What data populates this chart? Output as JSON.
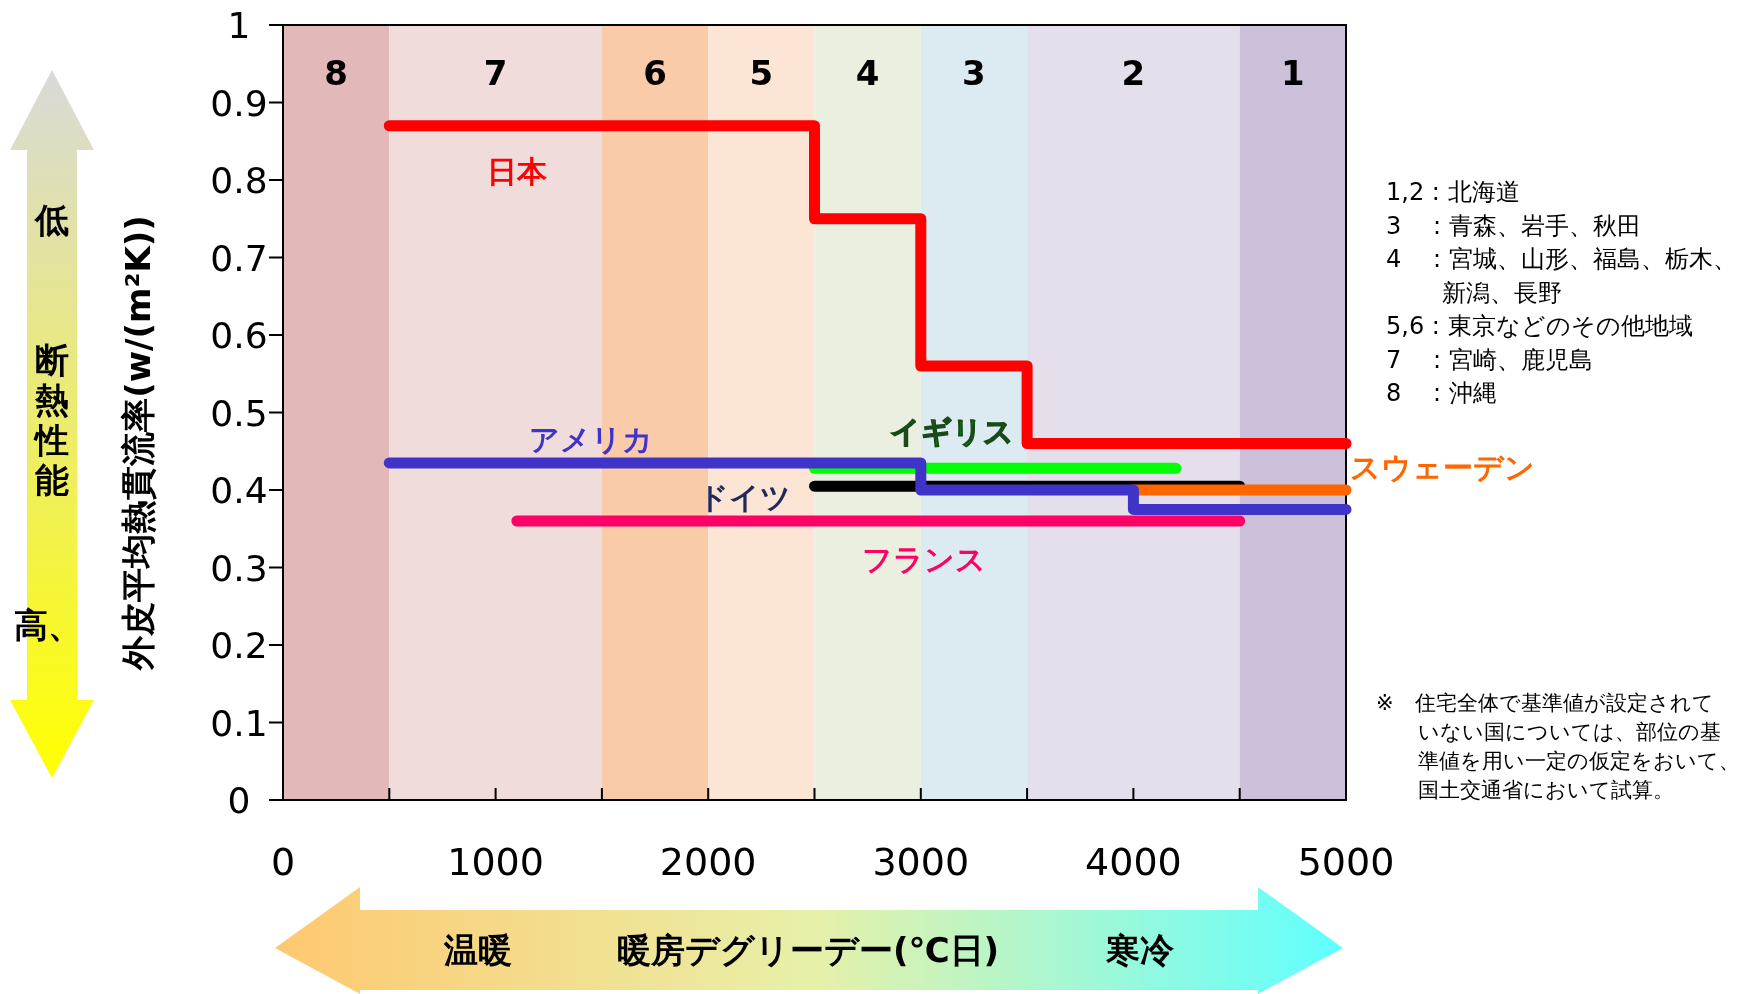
{
  "chart_data": {
    "type": "step",
    "ylabel": "外皮平均熱貫流率(w/(m²K))",
    "xlabel": "暖房デグリーデー(℃日)",
    "xlim": [
      0,
      5000
    ],
    "ylim": [
      0,
      1
    ],
    "xticks": [
      0,
      {
        "value": 500,
        "label": null
      },
      1000,
      {
        "value": 1500,
        "label": null
      },
      2000,
      {
        "value": 2500,
        "label": null
      },
      3000,
      {
        "value": 3500,
        "label": null
      },
      4000,
      {
        "value": 4500,
        "label": null
      },
      5000
    ],
    "yticks": [
      0,
      0.1,
      0.2,
      0.3,
      0.4,
      0.5,
      0.6,
      0.7,
      0.8,
      0.9,
      1
    ],
    "grid": false,
    "line_style": "solid",
    "marker": "none",
    "bands": [
      {
        "axis": "x",
        "from": 0,
        "to": 500,
        "label": "8",
        "color": "#e3b8b9"
      },
      {
        "axis": "x",
        "from": 500,
        "to": 1500,
        "label": "7",
        "color": "#f1dcdc"
      },
      {
        "axis": "x",
        "from": 1500,
        "to": 2000,
        "label": "6",
        "color": "#f9cba9"
      },
      {
        "axis": "x",
        "from": 2000,
        "to": 2500,
        "label": "5",
        "color": "#fce5d5"
      },
      {
        "axis": "x",
        "from": 2500,
        "to": 3000,
        "label": "4",
        "color": "#ebefdf"
      },
      {
        "axis": "x",
        "from": 3000,
        "to": 3500,
        "label": "3",
        "color": "#dbebf1"
      },
      {
        "axis": "x",
        "from": 3500,
        "to": 4500,
        "label": "2",
        "color": "#e5dfeb"
      },
      {
        "axis": "x",
        "from": 4500,
        "to": 5000,
        "label": "1",
        "color": "#ccc0da"
      }
    ],
    "series": [
      {
        "name": "イギリス",
        "color": "#00ff00",
        "x": [
          2500,
          4200
        ],
        "values": [
          0.428,
          0.428
        ]
      },
      {
        "name": "ドイツ",
        "color": "#000000",
        "x": [
          2500,
          4500
        ],
        "values": [
          0.405,
          0.405
        ]
      },
      {
        "name": "スウェーデン",
        "color": "#ff6600",
        "x": [
          4000,
          5000
        ],
        "values": [
          0.4,
          0.4
        ]
      },
      {
        "name": "アメリカ",
        "color": "#4033c8",
        "x": [
          500,
          3000,
          4000,
          5000
        ],
        "values": [
          0.435,
          0.4,
          0.375,
          0.375
        ]
      },
      {
        "name": "フランス",
        "color": "#ff0066",
        "x": [
          1100,
          4500
        ],
        "values": [
          0.36,
          0.36
        ]
      },
      {
        "name": "日本",
        "color": "#ff0000",
        "x": [
          500,
          2500,
          3000,
          3500,
          5000
        ],
        "values": [
          0.87,
          0.75,
          0.56,
          0.46,
          0.46
        ]
      }
    ],
    "annotations": [
      "低",
      "断熱性能",
      "高、",
      "温暖",
      "寒冷",
      "1,2 : 北海道",
      "3　 : 青森、岩手、秋田",
      "4　 : 宮城、山形、福島、栃木、",
      "　　 新潟、長野",
      "5,6 : 東京などのその他地域",
      "7　 : 宮崎、鹿児島",
      "8　 : 沖縄",
      "※　住宅全体で基準値が設定されて",
      "　　いない国については、部位の基",
      "　　準値を用い一定の仮定をおいて、",
      "　　国土交通省において試算。"
    ]
  }
}
